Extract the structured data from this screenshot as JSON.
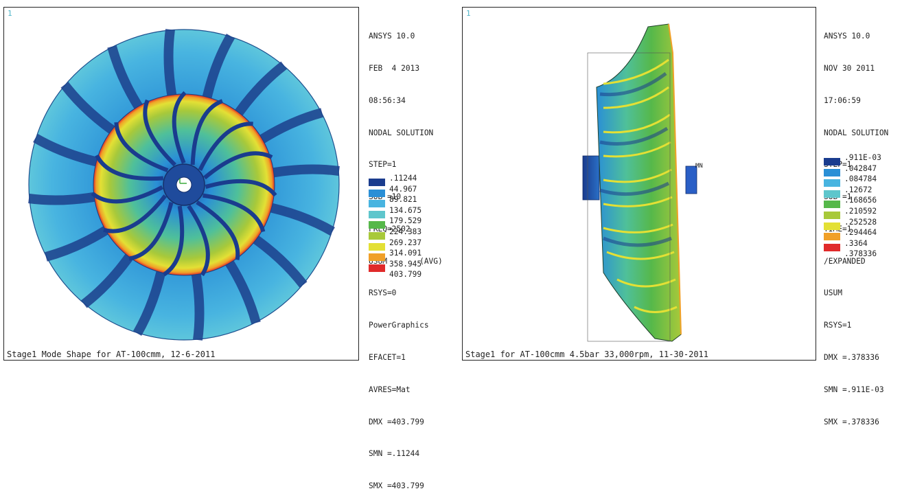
{
  "colors": {
    "dark_blue": "#1a3c8e",
    "blue": "#2a8fd6",
    "light_blue": "#48b4e0",
    "cyan": "#5ec6cc",
    "teal_green": "#4fc09a",
    "green": "#56b84a",
    "yellow_green": "#a8c93a",
    "yellow": "#e3e035",
    "orange": "#f0a028",
    "red": "#e02a2a"
  },
  "left_panel": {
    "window_number": "1",
    "caption": "Stage1 Mode Shape for AT-100cmm, 12-6-2011",
    "info_lines": [
      "ANSYS 10.0",
      "FEB  4 2013",
      "08:56:34",
      "NODAL SOLUTION",
      "STEP=1",
      "SUB =10",
      "FREQ=2502",
      "USUM       (AVG)",
      "RSYS=0",
      "PowerGraphics",
      "EFACET=1",
      "AVRES=Mat",
      "DMX =403.799",
      "SMN =.11244",
      "SMX =403.799"
    ],
    "legend_values": [
      ".11244",
      "44.967",
      "89.821",
      "134.675",
      "179.529",
      "224.383",
      "269.237",
      "314.091",
      "358.945",
      "403.799"
    ]
  },
  "right_panel": {
    "window_number": "1",
    "caption": "Stage1 for AT-100cmm 4.5bar 33,000rpm, 11-30-2011",
    "mn_label": "MN",
    "info_lines": [
      "ANSYS 10.0",
      "NOV 30 2011",
      "17:06:59",
      "NODAL SOLUTION",
      "STEP=1",
      "SUB =1",
      "TIME=1",
      "/EXPANDED",
      "USUM",
      "RSYS=1",
      "DMX =.378336",
      "SMN =.911E-03",
      "SMX =.378336"
    ],
    "legend_values": [
      ".911E-03",
      ".042847",
      ".084784",
      ".12672",
      ".168656",
      ".210592",
      ".252528",
      ".294464",
      ".3364",
      ".378336"
    ]
  }
}
